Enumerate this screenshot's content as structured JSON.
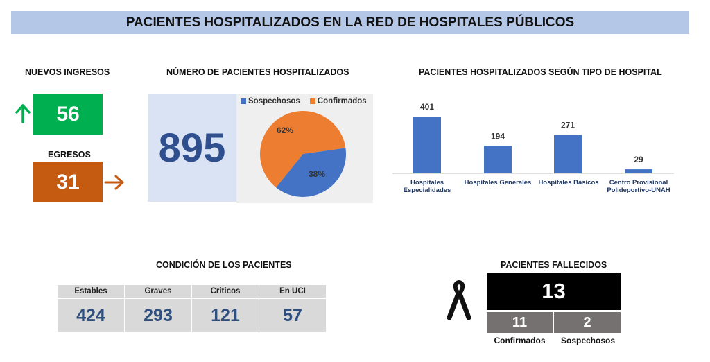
{
  "title": "PACIENTES HOSPITALIZADOS EN LA RED DE HOSPITALES PÚBLICOS",
  "ingresos": {
    "label": "NUEVOS INGRESOS",
    "value": "56",
    "color": "#00b050"
  },
  "egresos": {
    "label": "EGRESOS",
    "value": "31",
    "color": "#c55a11"
  },
  "hospitalizados": {
    "label": "NÚMERO DE PACIENTES HOSPITALIZADOS",
    "total": "895"
  },
  "pie": {
    "legend": [
      {
        "name": "Sospechosos",
        "color": "#4472c4"
      },
      {
        "name": "Confirmados",
        "color": "#ed7d31"
      }
    ],
    "labels": {
      "sospechosos": "38%",
      "confirmados": "62%"
    }
  },
  "bar_title": "PACIENTES HOSPITALIZADOS SEGÚN TIPO DE HOSPITAL",
  "chart_data": [
    {
      "type": "pie",
      "categories": [
        "Sospechosos",
        "Confirmados"
      ],
      "values": [
        38,
        62
      ],
      "unit": "%"
    },
    {
      "type": "bar",
      "title": "PACIENTES HOSPITALIZADOS SEGÚN TIPO DE HOSPITAL",
      "categories": [
        "Hospitales Especialidades",
        "Hospitales Generales",
        "Hospitales Básicos",
        "Centro Provisional Polideportivo-UNAH"
      ],
      "values": [
        401,
        194,
        271,
        29
      ],
      "ylim": [
        0,
        420
      ]
    }
  ],
  "bar_categories": [
    {
      "line1": "Hospitales",
      "line2": "Especialidades"
    },
    {
      "line1": "Hospitales Generales",
      "line2": ""
    },
    {
      "line1": "Hospitales Básicos",
      "line2": ""
    },
    {
      "line1": "Centro Provisional",
      "line2": "Polideportivo-UNAH"
    }
  ],
  "bar_color": "#4472c4",
  "condicion": {
    "title": "CONDICIÓN DE LOS PACIENTES",
    "columns": [
      {
        "label": "Estables",
        "value": "424"
      },
      {
        "label": "Graves",
        "value": "293"
      },
      {
        "label": "Criticos",
        "value": "121"
      },
      {
        "label": "En UCI",
        "value": "57"
      }
    ]
  },
  "fallecidos": {
    "title": "PACIENTES FALLECIDOS",
    "total": "13",
    "confirmados": {
      "label": "Confirmados",
      "value": "11"
    },
    "sospechosos": {
      "label": "Sospechosos",
      "value": "2"
    }
  },
  "icons": [
    "arrow-up-icon",
    "arrow-right-icon",
    "mourning-ribbon-icon"
  ]
}
